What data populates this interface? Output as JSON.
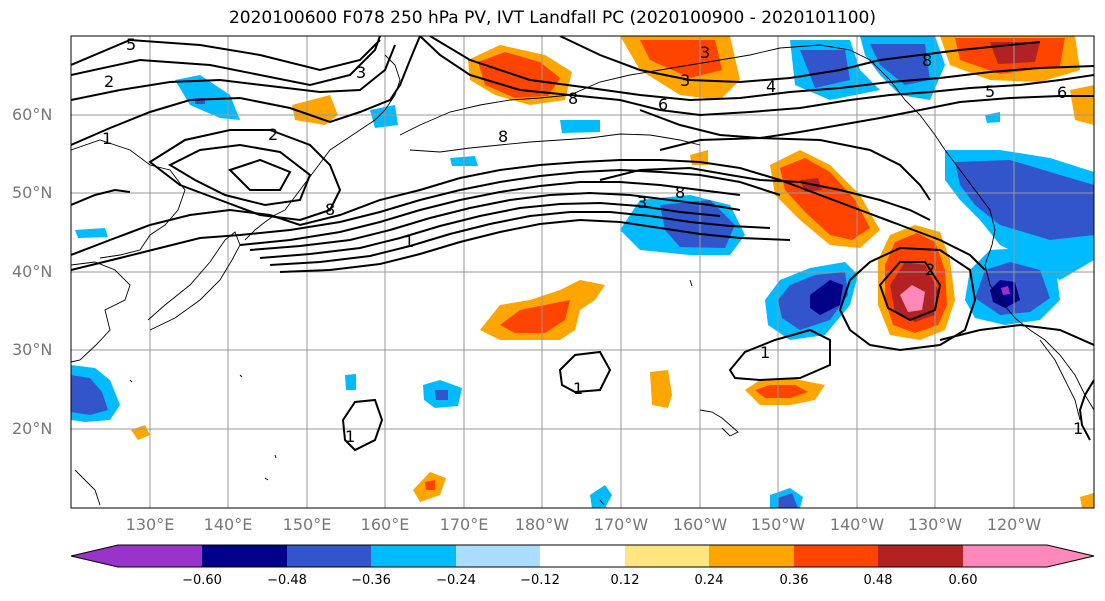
{
  "title": "2020100600 F078 250 hPa PV, IVT Landfall PC (2020100900 - 2020101100)",
  "lat_labels": [
    "60°N",
    "50°N",
    "40°N",
    "30°N",
    "20°N"
  ],
  "lon_labels": [
    "130°E",
    "140°E",
    "150°E",
    "160°E",
    "170°E",
    "180°W",
    "170°W",
    "160°W",
    "150°W",
    "140°W",
    "130°W",
    "120°W"
  ],
  "colorbar": {
    "colors": [
      "#9933cc",
      "#000088",
      "#3355cc",
      "#00bbff",
      "#aaddff",
      "#ffffff",
      "#ffe680",
      "#ffa500",
      "#ff4400",
      "#b22222",
      "#ff88bb"
    ],
    "ticks": [
      "−0.60",
      "−0.48",
      "−0.36",
      "−0.24",
      "−0.12",
      "0.12",
      "0.24",
      "0.36",
      "0.48",
      "0.60"
    ]
  },
  "contour_labels": [
    "5",
    "2",
    "1",
    "3",
    "2",
    "8",
    "1",
    "8",
    "3",
    "3",
    "4",
    "8",
    "6",
    "8",
    "5",
    "6",
    "8",
    "3",
    "2",
    "1",
    "1",
    "1",
    "1"
  ],
  "colors": {
    "gridline": "#999999",
    "contour": "#000000",
    "coast": "#000000"
  }
}
